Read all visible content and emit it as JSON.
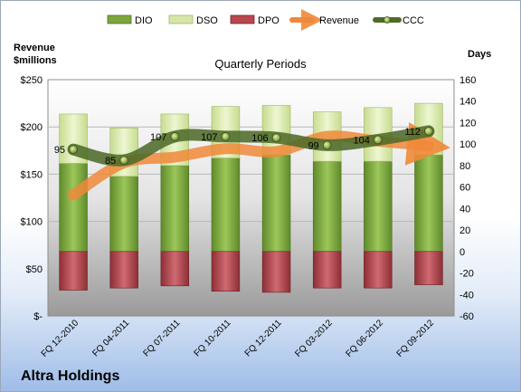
{
  "company": "Altra Holdings",
  "chart_data": {
    "type": "bar",
    "title": "Quarterly Periods",
    "y_left_label_line1": "Revenue",
    "y_left_label_line2": "$millions",
    "y_right_label": "Days",
    "categories": [
      "FQ 12-2010",
      "FQ 04-2011",
      "FQ 07-2011",
      "FQ 10-2011",
      "FQ 12-2011",
      "FQ 03-2012",
      "FQ 06-2012",
      "FQ 09-2012"
    ],
    "left_axis": {
      "min": 0,
      "max": 250,
      "ticks": [
        0,
        50,
        100,
        150,
        200,
        250
      ],
      "tick_labels": [
        "$-",
        "$50",
        "$100",
        "$150",
        "$200",
        "$250"
      ]
    },
    "right_axis": {
      "min": -60,
      "max": 160,
      "ticks": [
        -60,
        -40,
        -20,
        0,
        20,
        40,
        60,
        80,
        100,
        120,
        140,
        160
      ],
      "tick_labels": [
        "-60",
        "-40",
        "-20",
        "0",
        "20",
        "40",
        "60",
        "80",
        "100",
        "120",
        "140",
        "160"
      ]
    },
    "legend": [
      "DIO",
      "DSO",
      "DPO",
      "Revenue",
      "CCC"
    ],
    "legend_position": "top",
    "series": [
      {
        "name": "DIO",
        "axis": "right",
        "kind": "stacked-bar",
        "color": "#7ea63e",
        "values": [
          82,
          70,
          80,
          87,
          90,
          84,
          84,
          90
        ]
      },
      {
        "name": "DSO",
        "axis": "right",
        "kind": "stacked-bar",
        "color": "#d6e6a8",
        "values": [
          46,
          45,
          48,
          48,
          46,
          46,
          50,
          48
        ]
      },
      {
        "name": "DPO",
        "axis": "right",
        "kind": "stacked-bar-negative",
        "color": "#b9474f",
        "values": [
          -36,
          -34,
          -32,
          -37,
          -38,
          -34,
          -34,
          -31
        ]
      },
      {
        "name": "Revenue",
        "axis": "left",
        "kind": "line",
        "color": "#f0883a",
        "values": [
          128,
          162,
          168,
          177,
          174,
          190,
          185,
          180
        ]
      },
      {
        "name": "CCC",
        "axis": "right",
        "kind": "line",
        "color": "#4f6b2a",
        "values": [
          95,
          85,
          107,
          107,
          106,
          99,
          104,
          112
        ],
        "labels": [
          "95",
          "85",
          "107",
          "107",
          "106",
          "99",
          "104",
          "112"
        ]
      }
    ]
  }
}
